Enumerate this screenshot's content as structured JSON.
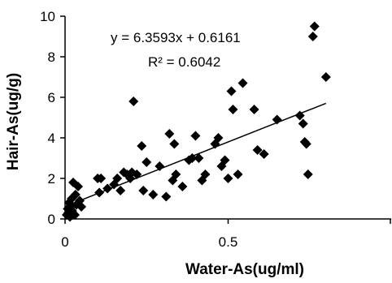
{
  "chart_data": {
    "type": "scatter",
    "xlabel": "Water-As(ug/ml)",
    "ylabel": "Hair-As(ug/g)",
    "xlim": [
      0,
      1
    ],
    "ylim": [
      0,
      10
    ],
    "x_ticks": [
      0,
      0.5,
      1
    ],
    "x_tick_labels": [
      "0",
      "0.5",
      ""
    ],
    "y_ticks": [
      0,
      2,
      4,
      6,
      8,
      10
    ],
    "y_tick_labels": [
      "0",
      "2",
      "4",
      "6",
      "8",
      "10"
    ],
    "grid": false,
    "marker": "diamond",
    "annotations": {
      "equation": "y = 6.3593x + 0.6161",
      "r2": "R² = 0.6042"
    },
    "trendline": {
      "slope": 6.3593,
      "intercept": 0.6161,
      "x_range": [
        0,
        0.8
      ]
    },
    "points": [
      [
        0.005,
        0.2
      ],
      [
        0.008,
        0.5
      ],
      [
        0.01,
        0.3
      ],
      [
        0.012,
        0.8
      ],
      [
        0.015,
        0.1
      ],
      [
        0.018,
        0.6
      ],
      [
        0.02,
        1.0
      ],
      [
        0.022,
        0.4
      ],
      [
        0.025,
        1.8
      ],
      [
        0.03,
        0.2
      ],
      [
        0.032,
        1.2
      ],
      [
        0.035,
        0.7
      ],
      [
        0.04,
        1.6
      ],
      [
        0.045,
        0.9
      ],
      [
        0.05,
        0.6
      ],
      [
        0.1,
        2.0
      ],
      [
        0.105,
        1.3
      ],
      [
        0.11,
        2.0
      ],
      [
        0.13,
        1.5
      ],
      [
        0.15,
        1.7
      ],
      [
        0.16,
        2.0
      ],
      [
        0.17,
        1.4
      ],
      [
        0.18,
        2.3
      ],
      [
        0.19,
        2.2
      ],
      [
        0.2,
        2.0
      ],
      [
        0.205,
        2.3
      ],
      [
        0.21,
        5.8
      ],
      [
        0.22,
        2.2
      ],
      [
        0.235,
        3.6
      ],
      [
        0.24,
        1.4
      ],
      [
        0.25,
        2.8
      ],
      [
        0.27,
        1.2
      ],
      [
        0.29,
        2.6
      ],
      [
        0.31,
        1.1
      ],
      [
        0.32,
        4.2
      ],
      [
        0.33,
        1.9
      ],
      [
        0.335,
        3.7
      ],
      [
        0.34,
        2.2
      ],
      [
        0.36,
        1.6
      ],
      [
        0.38,
        2.9
      ],
      [
        0.39,
        3.0
      ],
      [
        0.4,
        4.1
      ],
      [
        0.41,
        3.0
      ],
      [
        0.42,
        1.9
      ],
      [
        0.43,
        2.2
      ],
      [
        0.46,
        3.7
      ],
      [
        0.47,
        4.0
      ],
      [
        0.48,
        2.6
      ],
      [
        0.49,
        2.9
      ],
      [
        0.5,
        2.0
      ],
      [
        0.51,
        6.3
      ],
      [
        0.515,
        5.4
      ],
      [
        0.53,
        2.2
      ],
      [
        0.545,
        6.7
      ],
      [
        0.58,
        5.4
      ],
      [
        0.59,
        3.4
      ],
      [
        0.61,
        3.2
      ],
      [
        0.65,
        4.9
      ],
      [
        0.72,
        5.1
      ],
      [
        0.73,
        4.7
      ],
      [
        0.735,
        3.8
      ],
      [
        0.74,
        3.7
      ],
      [
        0.745,
        2.2
      ],
      [
        0.76,
        9.0
      ],
      [
        0.765,
        9.5
      ],
      [
        0.8,
        7.0
      ]
    ]
  }
}
